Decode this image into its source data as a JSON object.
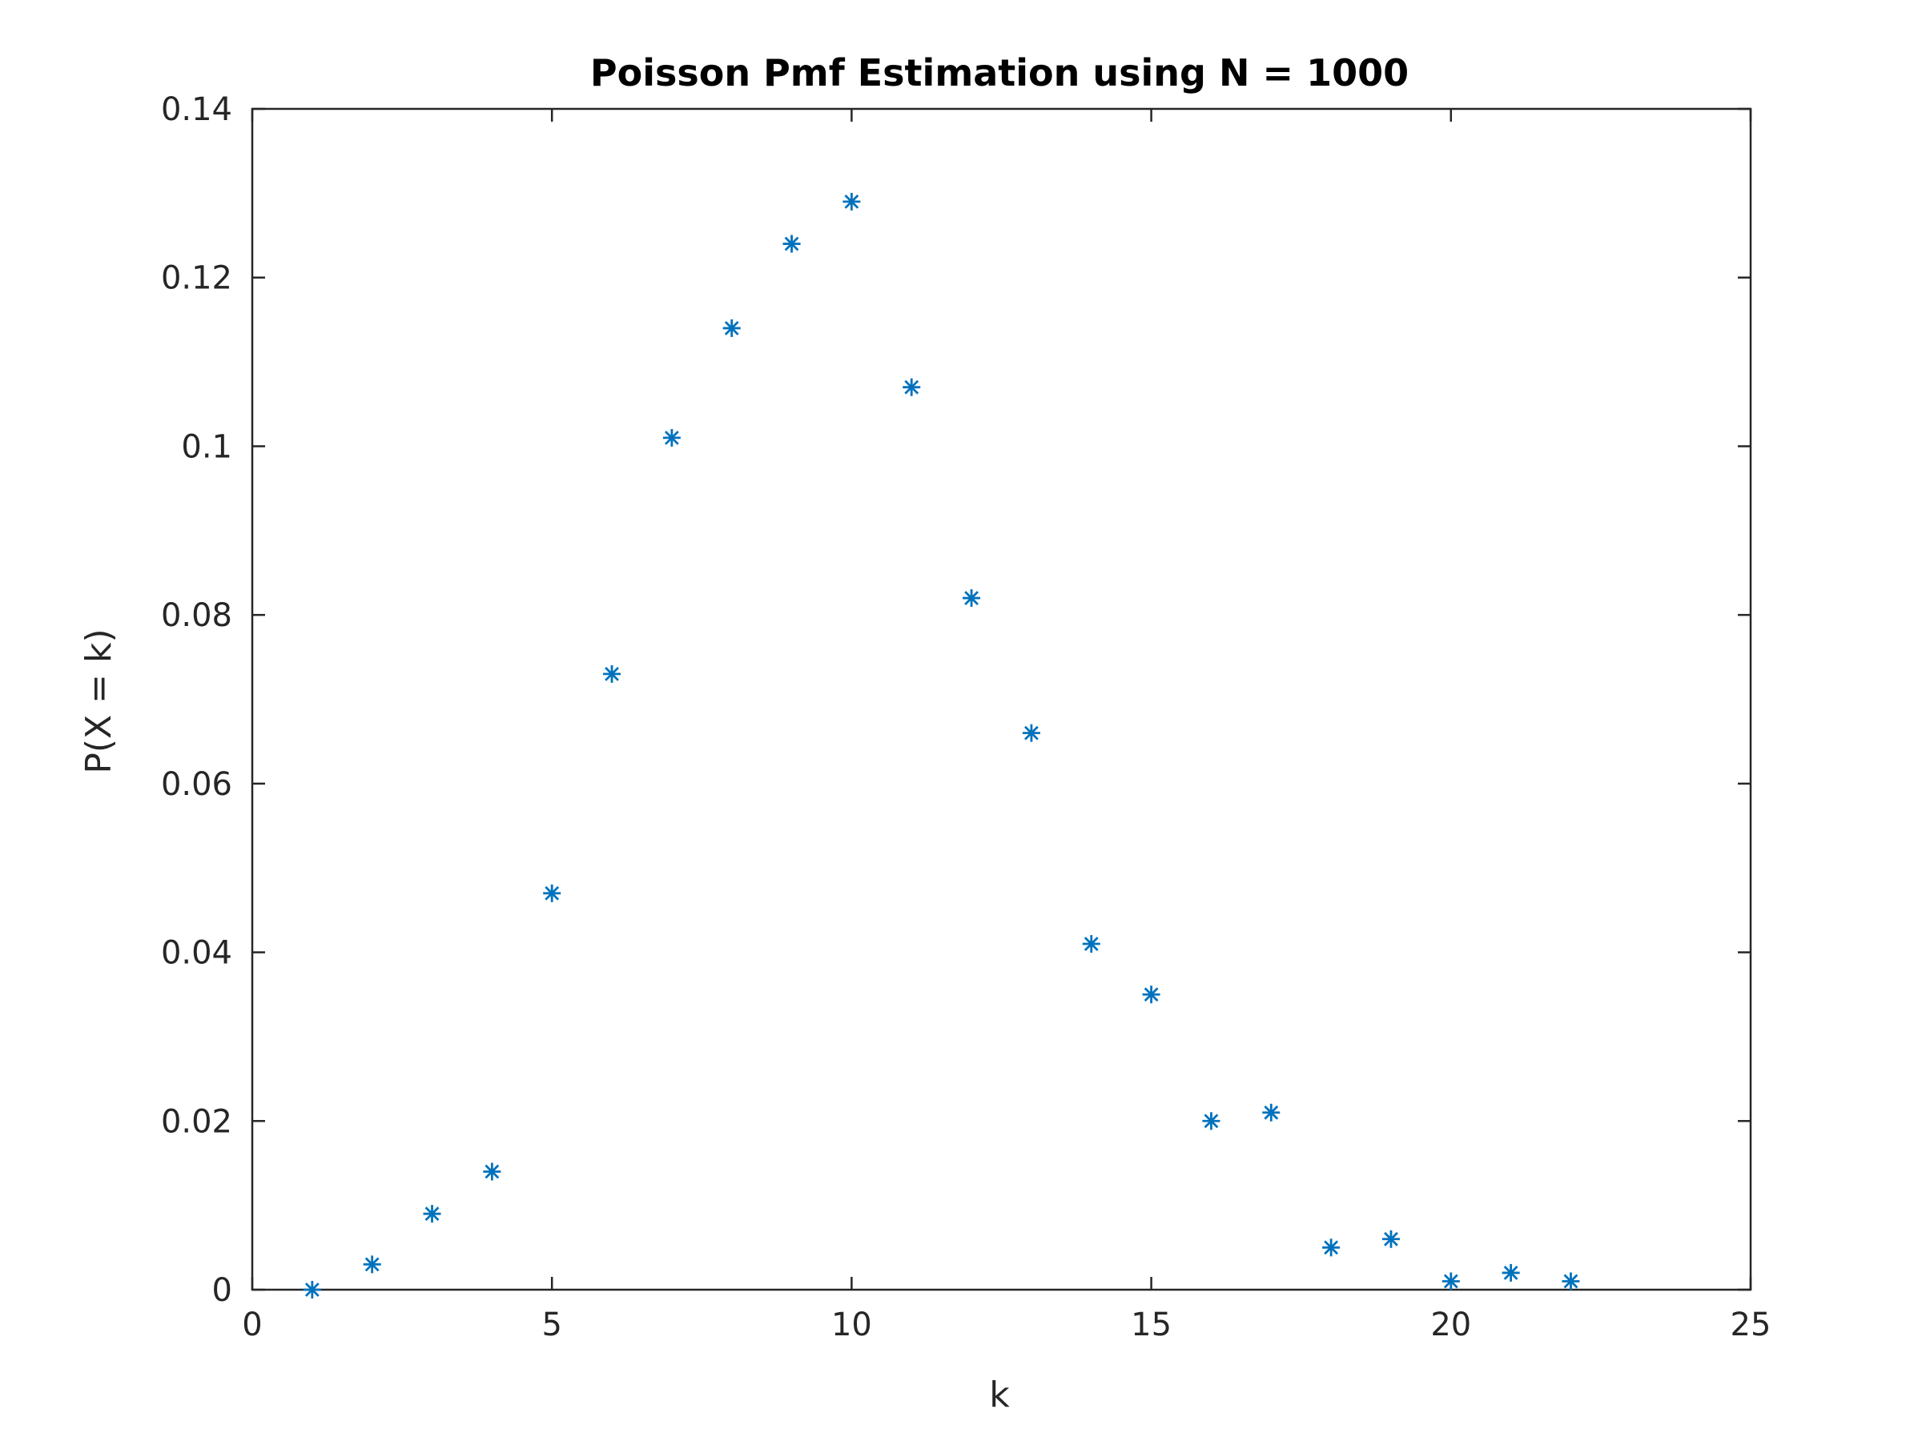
{
  "chart_data": {
    "type": "scatter",
    "title": "Poisson Pmf Estimation using N = 1000",
    "xlabel": "k",
    "ylabel": "P(X = k)",
    "xlim": [
      0,
      25
    ],
    "ylim": [
      0,
      0.14
    ],
    "xticks": [
      "0",
      "5",
      "10",
      "15",
      "20",
      "25"
    ],
    "yticks": [
      "0",
      "0.02",
      "0.04",
      "0.06",
      "0.08",
      "0.1",
      "0.12",
      "0.14"
    ],
    "grid": false,
    "marker": "asterisk",
    "marker_color": "#0072BD",
    "series": [
      {
        "x": [
          1,
          2,
          3,
          4,
          5,
          6,
          7,
          8,
          9,
          10,
          11,
          12,
          13,
          14,
          15,
          16,
          17,
          18,
          19,
          20,
          21,
          22
        ],
        "y": [
          0,
          0.003,
          0.009,
          0.014,
          0.047,
          0.073,
          0.101,
          0.114,
          0.124,
          0.129,
          0.107,
          0.082,
          0.066,
          0.041,
          0.035,
          0.02,
          0.021,
          0.005,
          0.006,
          0.001,
          0.002,
          0.001
        ]
      }
    ]
  }
}
